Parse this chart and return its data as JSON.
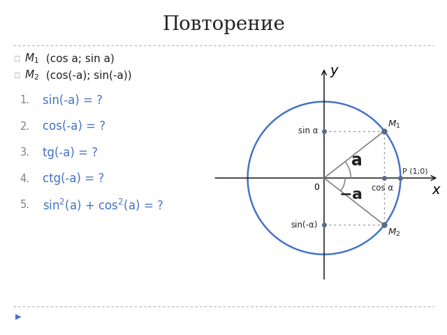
{
  "title": "Повторение",
  "title_fontsize": 20,
  "background_color": "#ffffff",
  "bullet_color": "#a0a0a0",
  "text_black": "#222222",
  "text_blue": "#4472C4",
  "text_gray": "#808080",
  "circle_color": "#4472C4",
  "circle_linewidth": 1.8,
  "dot_color": "#5a6a8a",
  "line_color": "#7F7F7F",
  "dashed_color": "#999999",
  "angle_color": "#888888",
  "alpha_deg": 38,
  "separator_color": "#b0b0b0",
  "separator_lw": 0.8,
  "bullet_items_m": [
    "M_1",
    "M_2"
  ],
  "bullet_items_rest": [
    " (cos a; sin a)",
    " (cos(-a); sin(-a))"
  ],
  "numbered_items": [
    "sin(-a) = ?",
    "cos(-a) = ?",
    "tg(-a) = ?",
    "ctg(-a) = ?",
    "sin²(a) + cos²(a) = ?"
  ]
}
